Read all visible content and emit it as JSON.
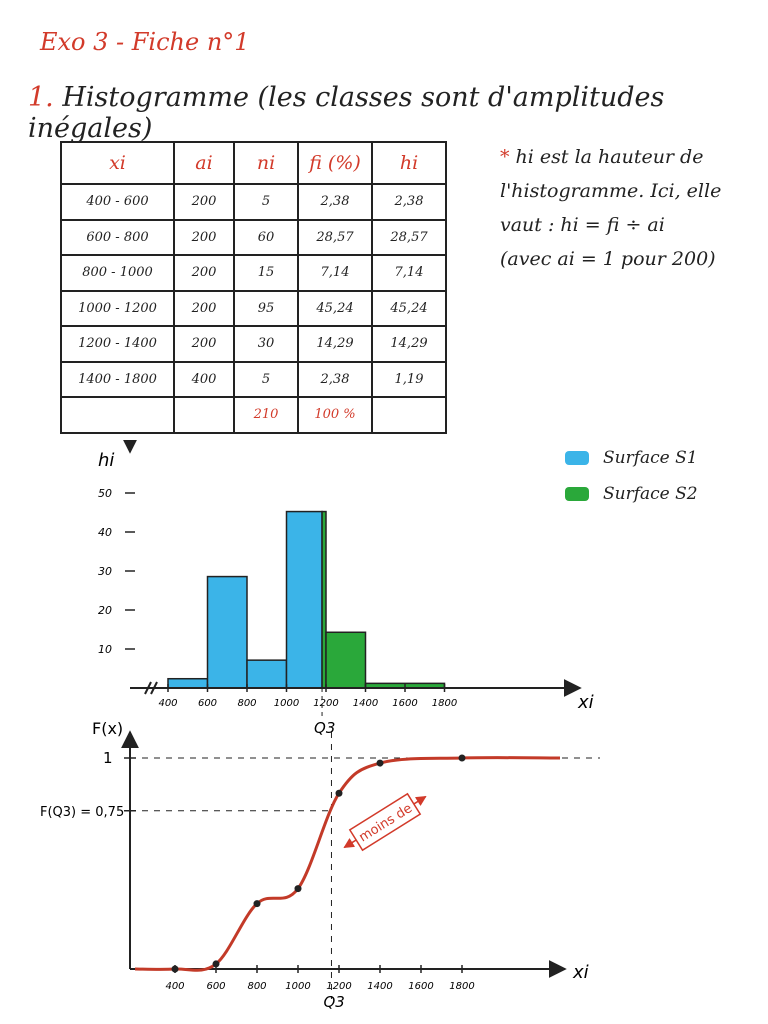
{
  "header": {
    "title": "Exo 3 - Fiche n°1",
    "section_number": "1.",
    "section_title": "Histogramme (les classes sont d'amplitudes inégales)"
  },
  "note": {
    "star": "*",
    "line1": "hi est la hauteur de l'histogramme. Ici, elle vaut : hi = fi ÷ ai",
    "line2": "(avec ai = 1 pour 200)"
  },
  "table": {
    "headers": [
      "xi",
      "ai",
      "ni",
      "fi (%)",
      "hi"
    ],
    "rows": [
      [
        "400 - 600",
        "200",
        "5",
        "2,38",
        "2,38"
      ],
      [
        "600 - 800",
        "200",
        "60",
        "28,57",
        "28,57"
      ],
      [
        "800 - 1000",
        "200",
        "15",
        "7,14",
        "7,14"
      ],
      [
        "1000 - 1200",
        "200",
        "95",
        "45,24",
        "45,24"
      ],
      [
        "1200 - 1400",
        "200",
        "30",
        "14,29",
        "14,29"
      ],
      [
        "1400 - 1800",
        "400",
        "5",
        "2,38",
        "1,19"
      ]
    ],
    "totals": [
      "",
      "",
      "210",
      "100 %",
      ""
    ]
  },
  "legend": {
    "s1": "Surface S1",
    "s2": "Surface S2",
    "s1_color": "#3bb4e8",
    "s2_color": "#2aa83a"
  },
  "chart_data": [
    {
      "type": "bar",
      "ylabel": "hi",
      "xlabel": "xi",
      "yticks": [
        10,
        20,
        30,
        40,
        50
      ],
      "xticks": [
        "400",
        "600",
        "800",
        "1000",
        "1200",
        "1400",
        "1600",
        "1800"
      ],
      "marker_label": "Q3",
      "marker_x": 1180,
      "ylim": [
        0,
        55
      ],
      "bins": [
        {
          "from": 400,
          "to": 600,
          "height": 2.38,
          "surface": "S1"
        },
        {
          "from": 600,
          "to": 800,
          "height": 28.57,
          "surface": "S1"
        },
        {
          "from": 800,
          "to": 1000,
          "height": 7.14,
          "surface": "S1"
        },
        {
          "from": 1000,
          "to": 1180,
          "height": 45.24,
          "surface": "S1"
        },
        {
          "from": 1180,
          "to": 1200,
          "height": 45.24,
          "surface": "S2"
        },
        {
          "from": 1200,
          "to": 1400,
          "height": 14.29,
          "surface": "S2"
        },
        {
          "from": 1400,
          "to": 1800,
          "height": 1.19,
          "surface": "S2"
        }
      ]
    },
    {
      "type": "line",
      "ylabel": "F(x)",
      "xlabel": "xi",
      "ytick_labels": [
        "1",
        "F(Q3) = 0,75"
      ],
      "yticks": [
        1,
        0.75
      ],
      "xticks": [
        "400",
        "600",
        "800",
        "1000",
        "1200",
        "1400",
        "1600",
        "1800"
      ],
      "marker_label": "Q3",
      "annotation": "moins de",
      "points": [
        {
          "x": 400,
          "y": 0
        },
        {
          "x": 600,
          "y": 0.024
        },
        {
          "x": 800,
          "y": 0.31
        },
        {
          "x": 1000,
          "y": 0.381
        },
        {
          "x": 1200,
          "y": 0.833
        },
        {
          "x": 1400,
          "y": 0.976
        },
        {
          "x": 1800,
          "y": 1
        }
      ]
    }
  ]
}
